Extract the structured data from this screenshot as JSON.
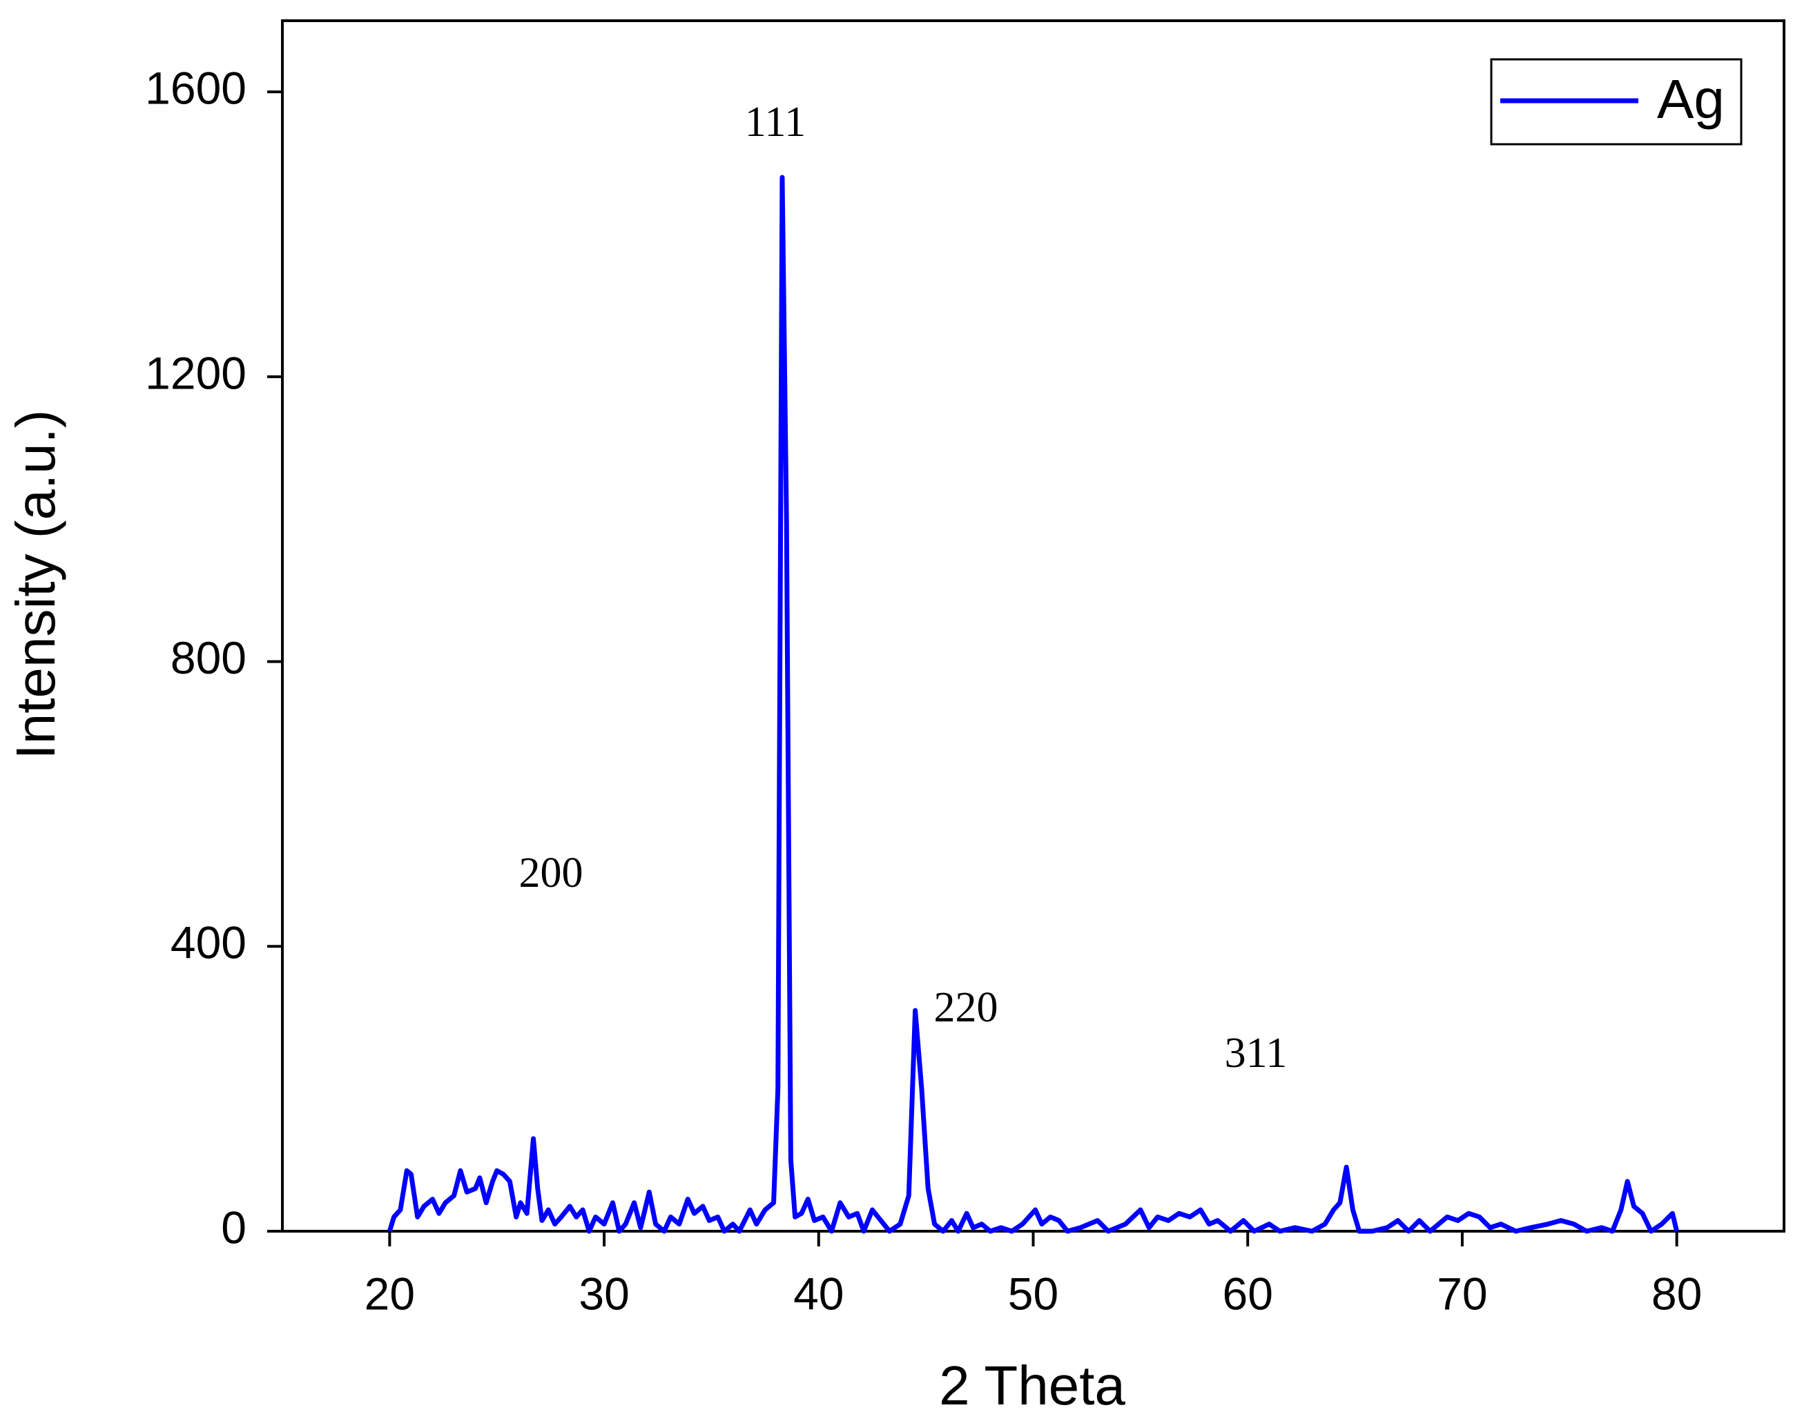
{
  "chart_data": {
    "type": "line",
    "xlabel": "2 Theta",
    "ylabel": "Intensity (a.u.)",
    "xlim": [
      15,
      85
    ],
    "xticks": [
      20,
      30,
      40,
      50,
      60,
      70,
      80
    ],
    "ylim": [
      0,
      1700
    ],
    "yticks": [
      0,
      400,
      800,
      1200,
      1600
    ],
    "legend": "upper right",
    "annotations": [
      "200",
      "111",
      "220",
      "311"
    ],
    "x": [
      20.0,
      20.2,
      20.5,
      20.8,
      21.0,
      21.3,
      21.6,
      22.0,
      22.3,
      22.6,
      23.0,
      23.3,
      23.6,
      24.0,
      24.2,
      24.5,
      24.8,
      25.0,
      25.3,
      25.6,
      25.9,
      26.1,
      26.4,
      26.7,
      26.9,
      27.1,
      27.4,
      27.7,
      28.0,
      28.4,
      28.7,
      29.0,
      29.3,
      29.6,
      30.0,
      30.4,
      30.7,
      31.0,
      31.4,
      31.7,
      32.1,
      32.4,
      32.8,
      33.1,
      33.5,
      33.9,
      34.2,
      34.6,
      34.9,
      35.3,
      35.6,
      36.0,
      36.3,
      36.8,
      37.1,
      37.5,
      37.9,
      38.1,
      38.3,
      38.5,
      38.7,
      38.9,
      39.2,
      39.5,
      39.8,
      40.2,
      40.6,
      41.0,
      41.4,
      41.8,
      42.1,
      42.5,
      42.9,
      43.3,
      43.8,
      44.2,
      44.5,
      44.8,
      45.1,
      45.4,
      45.8,
      46.2,
      46.5,
      46.9,
      47.2,
      47.6,
      48.0,
      48.5,
      49.0,
      49.5,
      50.1,
      50.4,
      50.8,
      51.2,
      51.6,
      52.2,
      53.0,
      53.5,
      54.3,
      55.0,
      55.4,
      55.8,
      56.3,
      56.8,
      57.3,
      57.8,
      58.2,
      58.6,
      59.2,
      59.8,
      60.3,
      61.0,
      61.5,
      62.2,
      63.0,
      63.6,
      64.0,
      64.3,
      64.6,
      64.9,
      65.2,
      65.8,
      66.5,
      67.0,
      67.5,
      68.0,
      68.5,
      69.3,
      69.8,
      70.3,
      70.8,
      71.3,
      71.8,
      72.5,
      73.2,
      74.0,
      74.6,
      75.2,
      75.8,
      76.5,
      77.0,
      77.4,
      77.7,
      78.0,
      78.4,
      78.8,
      79.3,
      79.8,
      80.0
    ],
    "series": [
      {
        "name": "Ag",
        "color": "#0000ff",
        "values": [
          0,
          20,
          30,
          85,
          80,
          20,
          35,
          45,
          25,
          40,
          50,
          85,
          55,
          60,
          75,
          40,
          70,
          85,
          80,
          70,
          20,
          40,
          25,
          130,
          60,
          15,
          30,
          10,
          20,
          35,
          20,
          30,
          0,
          20,
          10,
          40,
          0,
          10,
          40,
          5,
          55,
          10,
          0,
          20,
          10,
          45,
          25,
          35,
          15,
          20,
          0,
          10,
          0,
          30,
          10,
          30,
          40,
          200,
          1480,
          1000,
          100,
          20,
          25,
          45,
          15,
          20,
          0,
          40,
          20,
          25,
          0,
          30,
          15,
          0,
          10,
          50,
          310,
          200,
          60,
          10,
          0,
          15,
          0,
          25,
          5,
          10,
          0,
          5,
          0,
          10,
          30,
          10,
          20,
          15,
          0,
          5,
          15,
          0,
          10,
          30,
          5,
          20,
          15,
          25,
          20,
          30,
          10,
          15,
          0,
          15,
          0,
          10,
          0,
          5,
          0,
          10,
          30,
          40,
          90,
          30,
          0,
          0,
          5,
          15,
          0,
          15,
          0,
          20,
          15,
          25,
          20,
          5,
          10,
          0,
          5,
          10,
          15,
          10,
          0,
          5,
          0,
          30,
          70,
          35,
          25,
          0,
          10,
          25,
          0
        ]
      }
    ]
  }
}
